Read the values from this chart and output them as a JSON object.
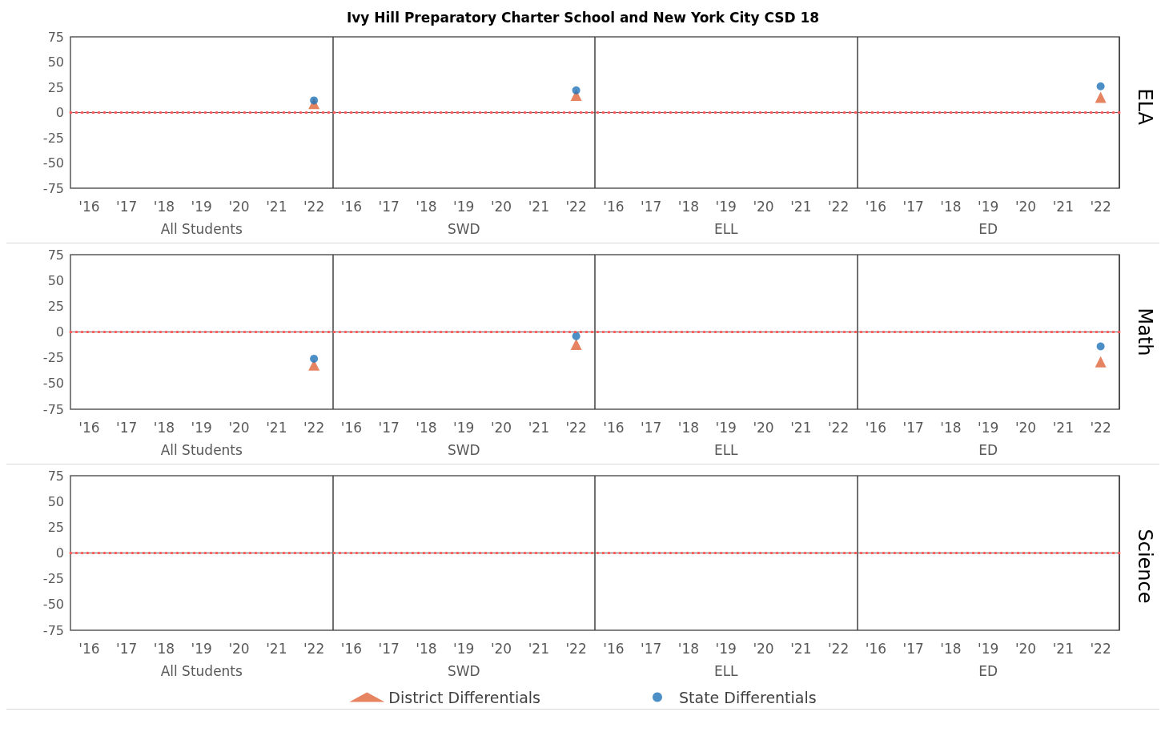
{
  "chart_data": [
    {
      "type": "scatter",
      "title": "Ivy Hill Preparatory Charter School and New York City CSD 18",
      "ylabel": "ELA",
      "categories": [
        "'16",
        "'17",
        "'18",
        "'19",
        "'20",
        "'21",
        "'22",
        "'16",
        "'17",
        "'18",
        "'19",
        "'20",
        "'21",
        "'22",
        "'16",
        "'17",
        "'18",
        "'19",
        "'20",
        "'21",
        "'22",
        "'16",
        "'17",
        "'18",
        "'19",
        "'20",
        "'21",
        "'22"
      ],
      "annotations": [
        "All Students",
        "SWD",
        "ELL",
        "ED"
      ],
      "series": [
        {
          "color": "#e0653a",
          "marker": "triangle",
          "values": [
            null,
            null,
            null,
            null,
            null,
            null,
            9,
            null,
            null,
            null,
            null,
            null,
            null,
            17,
            null,
            null,
            null,
            null,
            null,
            null,
            null,
            null,
            null,
            null,
            null,
            null,
            null,
            15
          ]
        },
        {
          "color": "#1f72b8",
          "marker": "circle",
          "values": [
            null,
            null,
            null,
            null,
            null,
            null,
            12,
            null,
            null,
            null,
            null,
            null,
            null,
            22,
            null,
            null,
            null,
            null,
            null,
            null,
            null,
            null,
            null,
            null,
            null,
            null,
            null,
            26
          ]
        }
      ],
      "ylim": [
        -75,
        75
      ],
      "yticks": [
        -75,
        -50,
        -25,
        0,
        25,
        50,
        75
      ],
      "grid": false,
      "legend": false,
      "ref_lines": [
        {
          "axis": "y",
          "value": 0,
          "color": "#ff5b5b",
          "line_style": "dotted"
        }
      ]
    },
    {
      "type": "scatter",
      "ylabel": "Math",
      "categories": [
        "'16",
        "'17",
        "'18",
        "'19",
        "'20",
        "'21",
        "'22",
        "'16",
        "'17",
        "'18",
        "'19",
        "'20",
        "'21",
        "'22",
        "'16",
        "'17",
        "'18",
        "'19",
        "'20",
        "'21",
        "'22",
        "'16",
        "'17",
        "'18",
        "'19",
        "'20",
        "'21",
        "'22"
      ],
      "annotations": [
        "All Students",
        "SWD",
        "ELL",
        "ED"
      ],
      "series": [
        {
          "color": "#e0653a",
          "marker": "triangle",
          "values": [
            null,
            null,
            null,
            null,
            null,
            null,
            -32,
            null,
            null,
            null,
            null,
            null,
            null,
            -12,
            null,
            null,
            null,
            null,
            null,
            null,
            null,
            null,
            null,
            null,
            null,
            null,
            null,
            -29
          ]
        },
        {
          "color": "#1f72b8",
          "marker": "circle",
          "values": [
            null,
            null,
            null,
            null,
            null,
            null,
            -26,
            null,
            null,
            null,
            null,
            null,
            null,
            -4,
            null,
            null,
            null,
            null,
            null,
            null,
            null,
            null,
            null,
            null,
            null,
            null,
            null,
            -14
          ]
        }
      ],
      "ylim": [
        -75,
        75
      ],
      "yticks": [
        -75,
        -50,
        -25,
        0,
        25,
        50,
        75
      ],
      "grid": false,
      "legend": false,
      "ref_lines": [
        {
          "axis": "y",
          "value": 0,
          "color": "#ff5b5b",
          "line_style": "dotted"
        }
      ]
    },
    {
      "type": "scatter",
      "ylabel": "Science",
      "categories": [
        "'16",
        "'17",
        "'18",
        "'19",
        "'20",
        "'21",
        "'22",
        "'16",
        "'17",
        "'18",
        "'19",
        "'20",
        "'21",
        "'22",
        "'16",
        "'17",
        "'18",
        "'19",
        "'20",
        "'21",
        "'22",
        "'16",
        "'17",
        "'18",
        "'19",
        "'20",
        "'21",
        "'22"
      ],
      "annotations": [
        "All Students",
        "SWD",
        "ELL",
        "ED"
      ],
      "series": [
        {
          "name": "District Differentials",
          "color": "#e0653a",
          "marker": "triangle",
          "values": [
            null,
            null,
            null,
            null,
            null,
            null,
            null,
            null,
            null,
            null,
            null,
            null,
            null,
            null,
            null,
            null,
            null,
            null,
            null,
            null,
            null,
            null,
            null,
            null,
            null,
            null,
            null,
            null
          ]
        },
        {
          "name": "State Differentials",
          "color": "#1f72b8",
          "marker": "circle",
          "values": [
            null,
            null,
            null,
            null,
            null,
            null,
            null,
            null,
            null,
            null,
            null,
            null,
            null,
            null,
            null,
            null,
            null,
            null,
            null,
            null,
            null,
            null,
            null,
            null,
            null,
            null,
            null,
            null
          ]
        }
      ],
      "ylim": [
        -75,
        75
      ],
      "yticks": [
        -75,
        -50,
        -25,
        0,
        25,
        50,
        75
      ],
      "grid": false,
      "legend": "bottom",
      "ref_lines": [
        {
          "axis": "y",
          "value": 0,
          "color": "#ff5b5b",
          "line_style": "dotted"
        }
      ]
    }
  ]
}
